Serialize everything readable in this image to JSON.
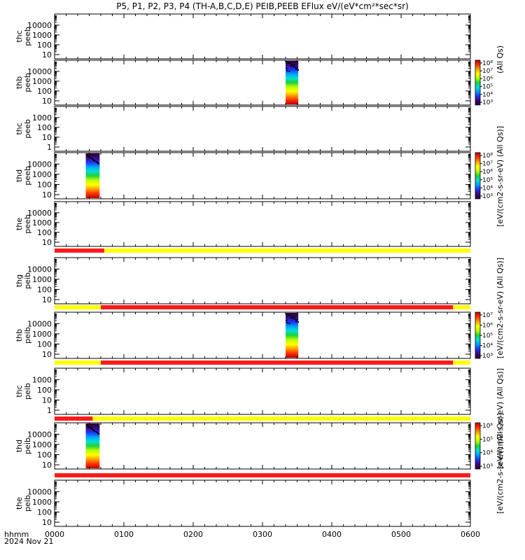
{
  "title": "P5, P1, P2, P3, P4 (TH-A,B,C,D,E) PEIB,PEEB EFlux eV/(eV*cm²*sec*sr)",
  "chart_data": {
    "type": "heatmap",
    "x_axis": {
      "ticks": [
        "0000",
        "0100",
        "0200",
        "0300",
        "0400",
        "0500",
        "0600"
      ],
      "range": [
        "00:00",
        "06:00"
      ],
      "label_line1": "hhmm",
      "label_line2": "2024 Nov 21"
    },
    "panels": [
      {
        "probe": "thc",
        "product": "peeb",
        "yticks": [
          "10",
          "100",
          "1000",
          "10000"
        ],
        "log": true,
        "data": []
      },
      {
        "probe": "thb",
        "product": "peeb",
        "yticks": [
          "10",
          "100",
          "1000",
          "10000"
        ],
        "log": true,
        "data": [
          {
            "t_start": "03:20",
            "t_end": "03:31",
            "flux_low_energy": "1e8",
            "flux_high_energy": "1e3"
          }
        ]
      },
      {
        "probe": "thc",
        "product": "peeb",
        "yticks": [
          "1",
          "10",
          "100",
          "1000"
        ],
        "log": true,
        "data": []
      },
      {
        "probe": "thd",
        "product": "peeb",
        "yticks": [
          "10",
          "100",
          "1000",
          "10000"
        ],
        "log": true,
        "data": [
          {
            "t_start": "00:27",
            "t_end": "00:39",
            "flux_low_energy": "1e8",
            "flux_high_energy": "1e3"
          }
        ]
      },
      {
        "probe": "the",
        "product": "peeb",
        "yticks": [
          "10",
          "100",
          "1000",
          "10000"
        ],
        "log": true,
        "data": []
      },
      {
        "probe": "thg",
        "product": "peib",
        "yticks": [
          "10",
          "100",
          "1000",
          "10000"
        ],
        "log": true,
        "data": []
      },
      {
        "probe": "thb",
        "product": "peib",
        "yticks": [
          "10",
          "100",
          "1000",
          "10000"
        ],
        "log": true,
        "data": [
          {
            "t_start": "03:20",
            "t_end": "03:31",
            "flux_low_energy": "1e7",
            "flux_high_energy": "1e3"
          }
        ]
      },
      {
        "probe": "thc",
        "product": "peib",
        "yticks": [
          "1",
          "10",
          "100",
          "1000"
        ],
        "log": true,
        "data": []
      },
      {
        "probe": "thd",
        "product": "peib",
        "yticks": [
          "10",
          "100",
          "1000",
          "10000"
        ],
        "log": true,
        "data": [
          {
            "t_start": "00:27",
            "t_end": "00:39",
            "flux_low_energy": "1e6",
            "flux_high_energy": "1e3"
          }
        ]
      },
      {
        "probe": "the",
        "product": "peib",
        "yticks": [
          "10",
          "100",
          "1000",
          "10000"
        ],
        "log": true,
        "data": []
      }
    ],
    "mode_bars": [
      {
        "after_panel": 4,
        "segments": [
          {
            "start": "00:00",
            "end": "00:43",
            "color": "#ff1a1a"
          },
          {
            "start": "00:43",
            "end": "06:00",
            "color": "#ffff00"
          }
        ]
      },
      {
        "after_panel": 5,
        "segments": [
          {
            "start": "00:00",
            "end": "00:40",
            "color": "#ffff00"
          },
          {
            "start": "00:40",
            "end": "05:45",
            "color": "#ff1a1a"
          },
          {
            "start": "05:45",
            "end": "06:00",
            "color": "#ffff00"
          }
        ]
      },
      {
        "after_panel": 6,
        "segments": [
          {
            "start": "00:00",
            "end": "00:40",
            "color": "#ffff00"
          },
          {
            "start": "00:40",
            "end": "05:45",
            "color": "#ff1a1a"
          },
          {
            "start": "05:45",
            "end": "06:00",
            "color": "#ffff00"
          }
        ]
      },
      {
        "after_panel": 7,
        "segments": [
          {
            "start": "00:00",
            "end": "00:33",
            "color": "#ff1a1a"
          },
          {
            "start": "00:33",
            "end": "06:00",
            "color": "#ffff00"
          }
        ]
      },
      {
        "after_panel": 8,
        "segments": [
          {
            "start": "00:00",
            "end": "06:00",
            "color": "#ff1a1a"
          }
        ]
      }
    ],
    "colorbars": [
      {
        "panel": 1,
        "ticks": [
          "10³",
          "10⁴",
          "10⁵",
          "10⁶",
          "10⁷",
          "10⁸"
        ]
      },
      {
        "panel": 3,
        "ticks": [
          "10³",
          "10⁴",
          "10⁵",
          "10⁶",
          "10⁷",
          "10⁸"
        ]
      },
      {
        "panel": 6,
        "ticks": [
          "10³",
          "10⁴",
          "10⁵",
          "10⁶",
          "10⁷"
        ]
      },
      {
        "panel": 8,
        "ticks": [
          "10³",
          "10⁴",
          "10⁵",
          "10⁶"
        ]
      }
    ],
    "side_labels": [
      {
        "text": "(All Qs)",
        "group": 0
      },
      {
        "text": "[eV/(cm2-s-sr-eV) (All Qs)]",
        "group": 1
      },
      {
        "text": "[eV/(cm2-s-sr-eV) (All Qs)]",
        "group": 2
      },
      {
        "text": "[eV/(cm2-s-sr-eV) (All Qs)]",
        "group": 3
      },
      {
        "text": "[eV/(cm2-s-sr-eV) (All Qs)]",
        "group": 4
      }
    ],
    "colormap": [
      "#2a0030",
      "#3a0a7a",
      "#2030ff",
      "#00a0ff",
      "#00e0d0",
      "#20d040",
      "#b8ff00",
      "#ffff00",
      "#ffa000",
      "#ff3000",
      "#c00000"
    ]
  }
}
